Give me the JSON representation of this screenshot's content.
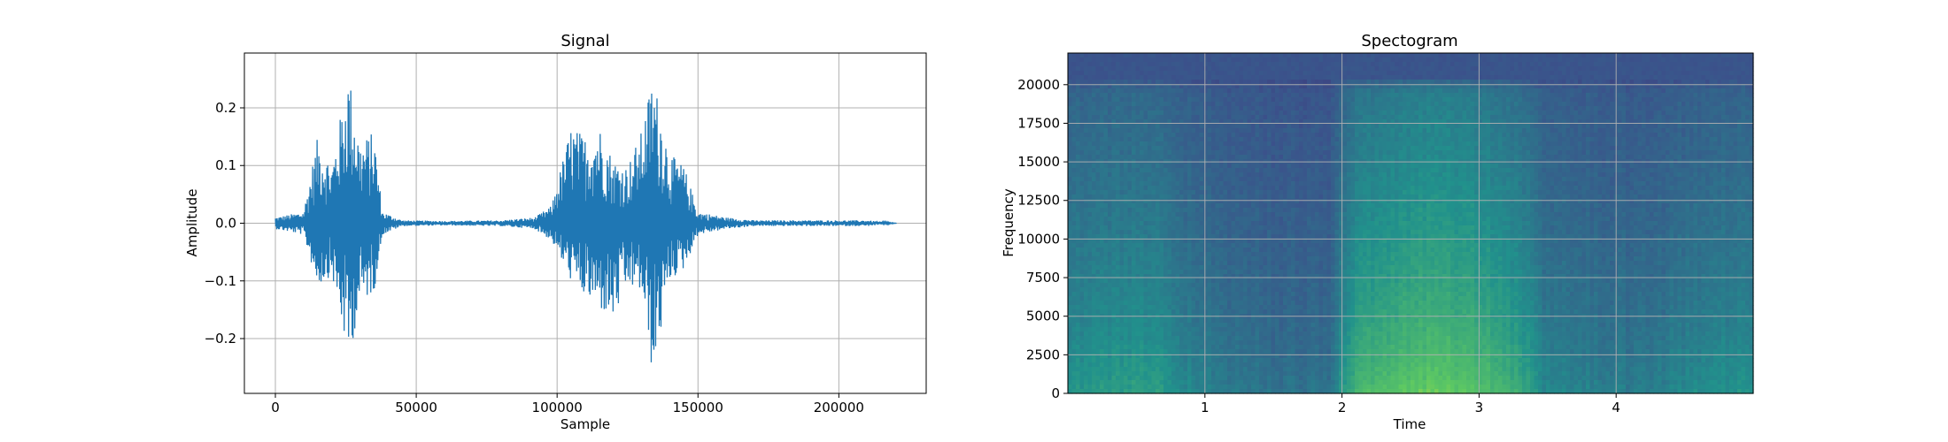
{
  "chart_data": [
    {
      "type": "line",
      "title": "Signal",
      "xlabel": "Sample",
      "ylabel": "Amplitude",
      "xlim": [
        -11000,
        231000
      ],
      "ylim": [
        -0.295,
        0.295
      ],
      "xticks": [
        0,
        50000,
        100000,
        150000,
        200000
      ],
      "xtick_labels": [
        "0",
        "50000",
        "100000",
        "150000",
        "200000"
      ],
      "yticks": [
        -0.2,
        -0.1,
        0.0,
        0.1,
        0.2
      ],
      "ytick_labels": [
        "−0.2",
        "−0.1",
        "0.0",
        "0.1",
        "0.2"
      ],
      "grid": true,
      "color": "#1f77b4",
      "n_samples": 220500,
      "envelope": {
        "x": [
          0,
          10000,
          15000,
          20000,
          26000,
          30000,
          35000,
          38000,
          45000,
          60000,
          80000,
          92000,
          98000,
          105000,
          110000,
          115000,
          120000,
          125000,
          130000,
          134000,
          140000,
          145000,
          150000,
          160000,
          170000,
          190000,
          210000,
          220500
        ],
        "max": [
          0.01,
          0.02,
          0.15,
          0.1,
          0.265,
          0.14,
          0.16,
          0.02,
          0.005,
          0.004,
          0.005,
          0.01,
          0.03,
          0.17,
          0.15,
          0.17,
          0.11,
          0.1,
          0.16,
          0.26,
          0.12,
          0.1,
          0.02,
          0.01,
          0.005,
          0.005,
          0.005,
          0.0
        ],
        "min": [
          -0.01,
          -0.02,
          -0.11,
          -0.09,
          -0.24,
          -0.14,
          -0.12,
          -0.02,
          -0.005,
          -0.004,
          -0.005,
          -0.01,
          -0.03,
          -0.1,
          -0.13,
          -0.15,
          -0.17,
          -0.11,
          -0.12,
          -0.27,
          -0.1,
          -0.08,
          -0.02,
          -0.01,
          -0.005,
          -0.005,
          -0.005,
          0.0
        ]
      }
    },
    {
      "type": "heatmap",
      "title": "Spectogram",
      "xlabel": "Time",
      "ylabel": "Frequency",
      "xlim": [
        0,
        5.0
      ],
      "ylim": [
        0,
        22050
      ],
      "xticks": [
        1,
        2,
        3,
        4
      ],
      "xtick_labels": [
        "1",
        "2",
        "3",
        "4"
      ],
      "yticks": [
        0,
        2500,
        5000,
        7500,
        10000,
        12500,
        15000,
        17500,
        20000
      ],
      "ytick_labels": [
        "0",
        "2500",
        "5000",
        "7500",
        "10000",
        "12500",
        "15000",
        "17500",
        "20000"
      ],
      "grid": true,
      "colormap": "viridis",
      "time_profile": {
        "t": [
          0,
          0.3,
          0.6,
          0.9,
          1.2,
          1.5,
          1.9,
          2.1,
          2.4,
          2.7,
          3.0,
          3.3,
          3.5,
          3.8,
          4.2,
          4.6,
          5.0
        ],
        "level": [
          0.55,
          0.6,
          0.62,
          0.45,
          0.38,
          0.32,
          0.33,
          0.78,
          0.9,
          0.95,
          0.88,
          0.7,
          0.45,
          0.42,
          0.38,
          0.5,
          0.55
        ]
      },
      "freq_profile": {
        "f": [
          0,
          1000,
          2500,
          5000,
          7500,
          10000,
          12500,
          15000,
          17500,
          19500,
          20500,
          22050
        ],
        "level": [
          1.0,
          0.92,
          0.85,
          0.75,
          0.68,
          0.62,
          0.56,
          0.5,
          0.46,
          0.42,
          0.2,
          0.18
        ]
      }
    }
  ]
}
